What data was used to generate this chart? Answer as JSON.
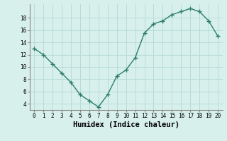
{
  "x": [
    0,
    1,
    2,
    3,
    4,
    5,
    6,
    7,
    8,
    9,
    10,
    11,
    12,
    13,
    14,
    15,
    16,
    17,
    18,
    19,
    20
  ],
  "y": [
    13,
    12,
    10.5,
    9,
    7.5,
    5.5,
    4.5,
    3.5,
    5.5,
    8.5,
    9.5,
    11.5,
    15.5,
    17,
    17.5,
    18.5,
    19,
    19.5,
    19,
    17.5,
    15
  ],
  "line_color": "#2e7d6e",
  "marker": "+",
  "marker_size": 4,
  "marker_linewidth": 1.0,
  "line_width": 1.0,
  "bg_color": "#d8f0ec",
  "grid_color": "#b8dcd8",
  "xlabel": "Humidex (Indice chaleur)",
  "xlabel_fontsize": 7.5,
  "tick_fontsize": 5.5,
  "ylabel_ticks": [
    4,
    6,
    8,
    10,
    12,
    14,
    16,
    18
  ],
  "xlim": [
    -0.5,
    20.5
  ],
  "ylim": [
    3.0,
    20.2
  ]
}
